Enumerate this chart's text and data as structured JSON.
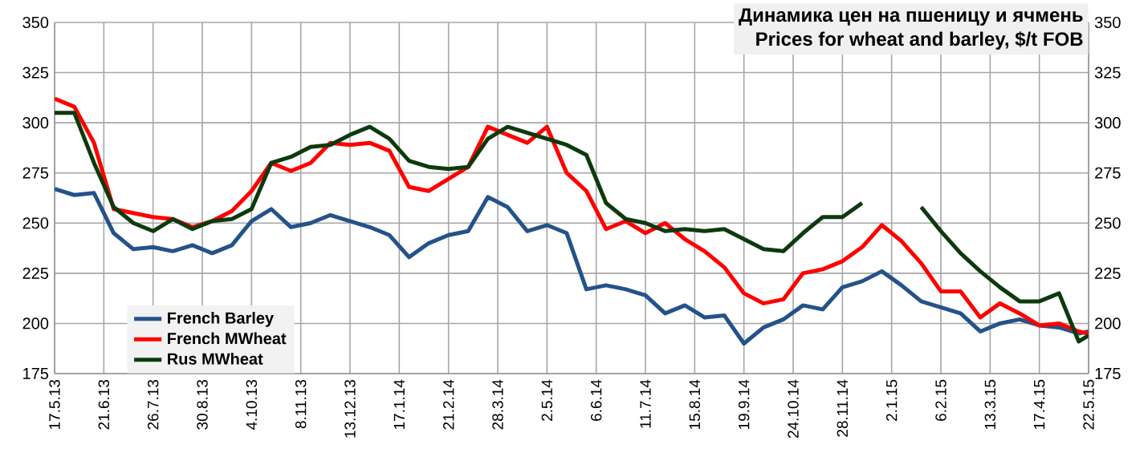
{
  "chart_data": {
    "type": "line",
    "title": "Динамика цен на пшеницу и ячмень",
    "subtitle": "Prices for wheat and barley, $/t FOB",
    "x": [
      "2013-05-17",
      "2013-05-31",
      "2013-06-14",
      "2013-06-28",
      "2013-07-12",
      "2013-07-26",
      "2013-08-09",
      "2013-08-23",
      "2013-09-06",
      "2013-09-20",
      "2013-10-04",
      "2013-10-18",
      "2013-11-01",
      "2013-11-15",
      "2013-11-29",
      "2013-12-13",
      "2013-12-27",
      "2014-01-10",
      "2014-01-24",
      "2014-02-07",
      "2014-02-21",
      "2014-03-07",
      "2014-03-21",
      "2014-04-04",
      "2014-04-18",
      "2014-05-02",
      "2014-05-16",
      "2014-05-30",
      "2014-06-13",
      "2014-06-27",
      "2014-07-11",
      "2014-07-25",
      "2014-08-08",
      "2014-08-22",
      "2014-09-05",
      "2014-09-19",
      "2014-10-03",
      "2014-10-17",
      "2014-10-31",
      "2014-11-14",
      "2014-11-28",
      "2014-12-12",
      "2014-12-26",
      "2015-01-09",
      "2015-01-23",
      "2015-02-06",
      "2015-02-20",
      "2015-03-06",
      "2015-03-20",
      "2015-04-03",
      "2015-04-17",
      "2015-05-01",
      "2015-05-15",
      "2015-05-22"
    ],
    "series": [
      {
        "name": "French Barley",
        "color": "#24528a",
        "values": [
          267,
          264,
          265,
          245,
          237,
          238,
          236,
          239,
          235,
          239,
          251,
          257,
          248,
          250,
          254,
          251,
          248,
          244,
          233,
          240,
          244,
          246,
          263,
          258,
          246,
          249,
          245,
          217,
          219,
          217,
          214,
          205,
          209,
          203,
          204,
          190,
          198,
          202,
          209,
          207,
          218,
          221,
          226,
          219,
          211,
          208,
          205,
          196,
          200,
          202,
          199,
          198,
          195,
          196
        ]
      },
      {
        "name": "French MWheat",
        "color": "#ff0000",
        "values": [
          312,
          308,
          290,
          257,
          255,
          253,
          252,
          248,
          251,
          256,
          266,
          280,
          276,
          280,
          290,
          289,
          290,
          286,
          268,
          266,
          272,
          278,
          298,
          294,
          290,
          298,
          275,
          266,
          247,
          251,
          245,
          250,
          242,
          236,
          228,
          215,
          210,
          212,
          225,
          227,
          231,
          238,
          249,
          241,
          230,
          216,
          216,
          203,
          210,
          205,
          199,
          200,
          196,
          195
        ]
      },
      {
        "name": "Rus MWheat",
        "color": "#0d3a0d",
        "values": [
          305,
          305,
          280,
          258,
          250,
          246,
          252,
          247,
          251,
          252,
          257,
          280,
          283,
          288,
          289,
          294,
          298,
          292,
          281,
          278,
          277,
          278,
          292,
          298,
          295,
          292,
          289,
          284,
          260,
          252,
          250,
          246,
          247,
          246,
          247,
          242,
          237,
          236,
          245,
          253,
          253,
          260,
          null,
          null,
          258,
          246,
          235,
          226,
          218,
          211,
          211,
          215,
          191,
          194
        ]
      }
    ],
    "xlim": [
      "2013-05-17",
      "2015-05-22"
    ],
    "xticks": [
      {
        "value": "2013-05-17",
        "label": "17.5.13"
      },
      {
        "value": "2013-06-21",
        "label": "21.6.13"
      },
      {
        "value": "2013-07-26",
        "label": "26.7.13"
      },
      {
        "value": "2013-08-30",
        "label": "30.8.13"
      },
      {
        "value": "2013-10-04",
        "label": "4.10.13"
      },
      {
        "value": "2013-11-08",
        "label": "8.11.13"
      },
      {
        "value": "2013-12-13",
        "label": "13.12.13"
      },
      {
        "value": "2014-01-17",
        "label": "17.1.14"
      },
      {
        "value": "2014-02-21",
        "label": "21.2.14"
      },
      {
        "value": "2014-03-28",
        "label": "28.3.14"
      },
      {
        "value": "2014-05-02",
        "label": "2.5.14"
      },
      {
        "value": "2014-06-06",
        "label": "6.6.14"
      },
      {
        "value": "2014-07-11",
        "label": "11.7.14"
      },
      {
        "value": "2014-08-15",
        "label": "15.8.14"
      },
      {
        "value": "2014-09-19",
        "label": "19.9.14"
      },
      {
        "value": "2014-10-24",
        "label": "24.10.14"
      },
      {
        "value": "2014-11-28",
        "label": "28.11.14"
      },
      {
        "value": "2015-01-02",
        "label": "2.1.15"
      },
      {
        "value": "2015-02-06",
        "label": "6.2.15"
      },
      {
        "value": "2015-03-13",
        "label": "13.3.15"
      },
      {
        "value": "2015-04-17",
        "label": "17.4.15"
      },
      {
        "value": "2015-05-22",
        "label": "22.5.15"
      }
    ],
    "ylim": [
      175,
      350
    ],
    "yticks": [
      175,
      200,
      225,
      250,
      275,
      300,
      325,
      350
    ],
    "y2lim": [
      175,
      350
    ],
    "y2ticks": [
      175,
      200,
      225,
      250,
      275,
      300,
      325,
      350
    ],
    "grid": true,
    "legend": "bottom left",
    "marker": "none",
    "line_style": "solid"
  }
}
